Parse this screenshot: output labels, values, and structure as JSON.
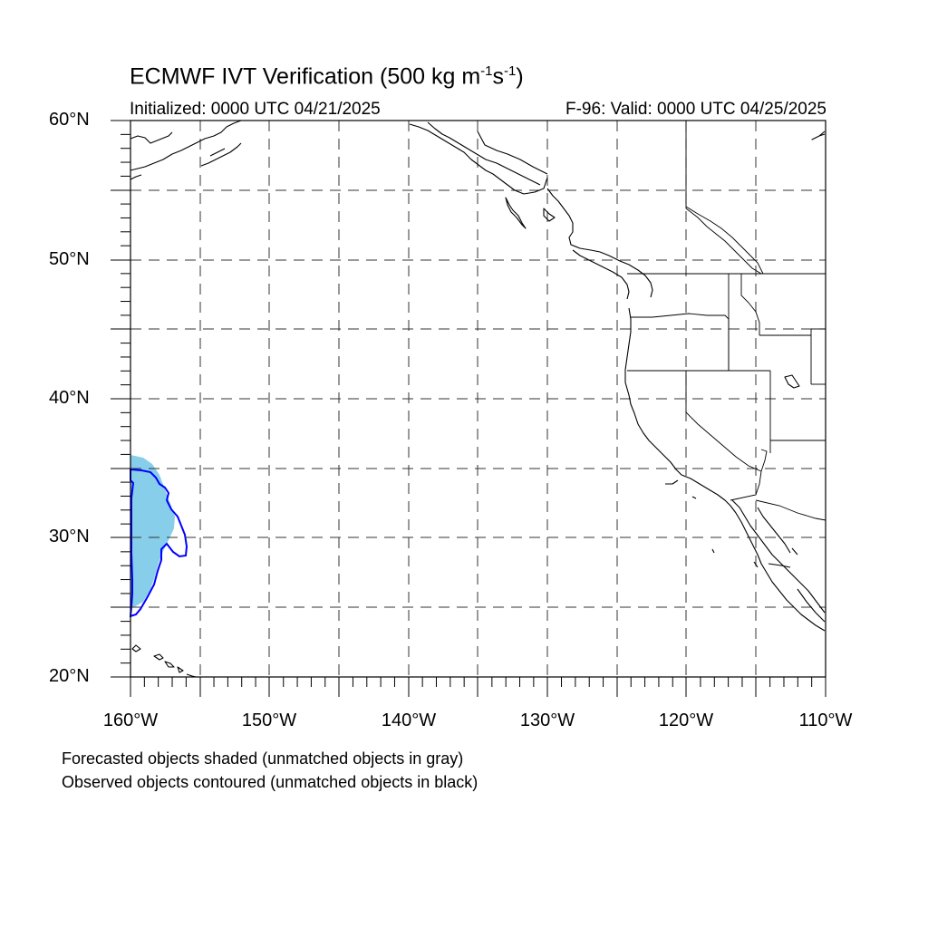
{
  "figure": {
    "title_main": "ECMWF IVT Verification (500 kg m",
    "title_exp1": "-1",
    "title_mid": "s",
    "title_exp2": "-1",
    "title_end": ")",
    "initialized": "Initialized: 0000 UTC 04/21/2025",
    "valid": "F-96: Valid: 0000 UTC 04/25/2025"
  },
  "axes": {
    "lat_labels": [
      "60°N",
      "50°N",
      "40°N",
      "30°N",
      "20°N"
    ],
    "lon_labels": [
      "160°W",
      "150°W",
      "140°W",
      "130°W",
      "120°W",
      "110°W"
    ],
    "lat_range": [
      20,
      60
    ],
    "lon_range": [
      -160,
      -110
    ],
    "grid": "dashed every 5 degrees"
  },
  "legend": {
    "forecast_note": "Forecasted objects shaded (unmatched objects in gray)",
    "observed_note": "Observed objects contoured (unmatched objects in black)"
  },
  "objects": {
    "forecast_fill_color": "#87ceeb",
    "observed_contour_color": "#0000ff",
    "coastline_color": "#000000"
  }
}
